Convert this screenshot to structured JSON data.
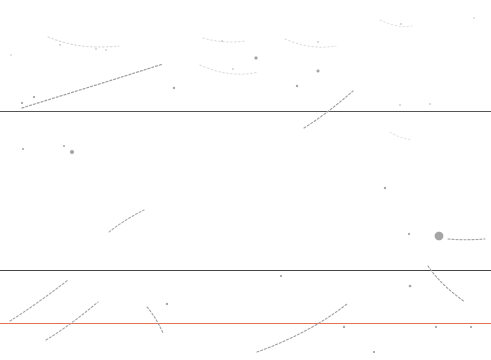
{
  "page": {
    "background": "#ffffff"
  },
  "rules": {
    "top_color": "#555555",
    "middle_color": "#444444",
    "bottom_color": "#e56f4f"
  },
  "noise": {
    "mark_color": "#9a9a9a",
    "faint_color": "#c8c8c8"
  }
}
